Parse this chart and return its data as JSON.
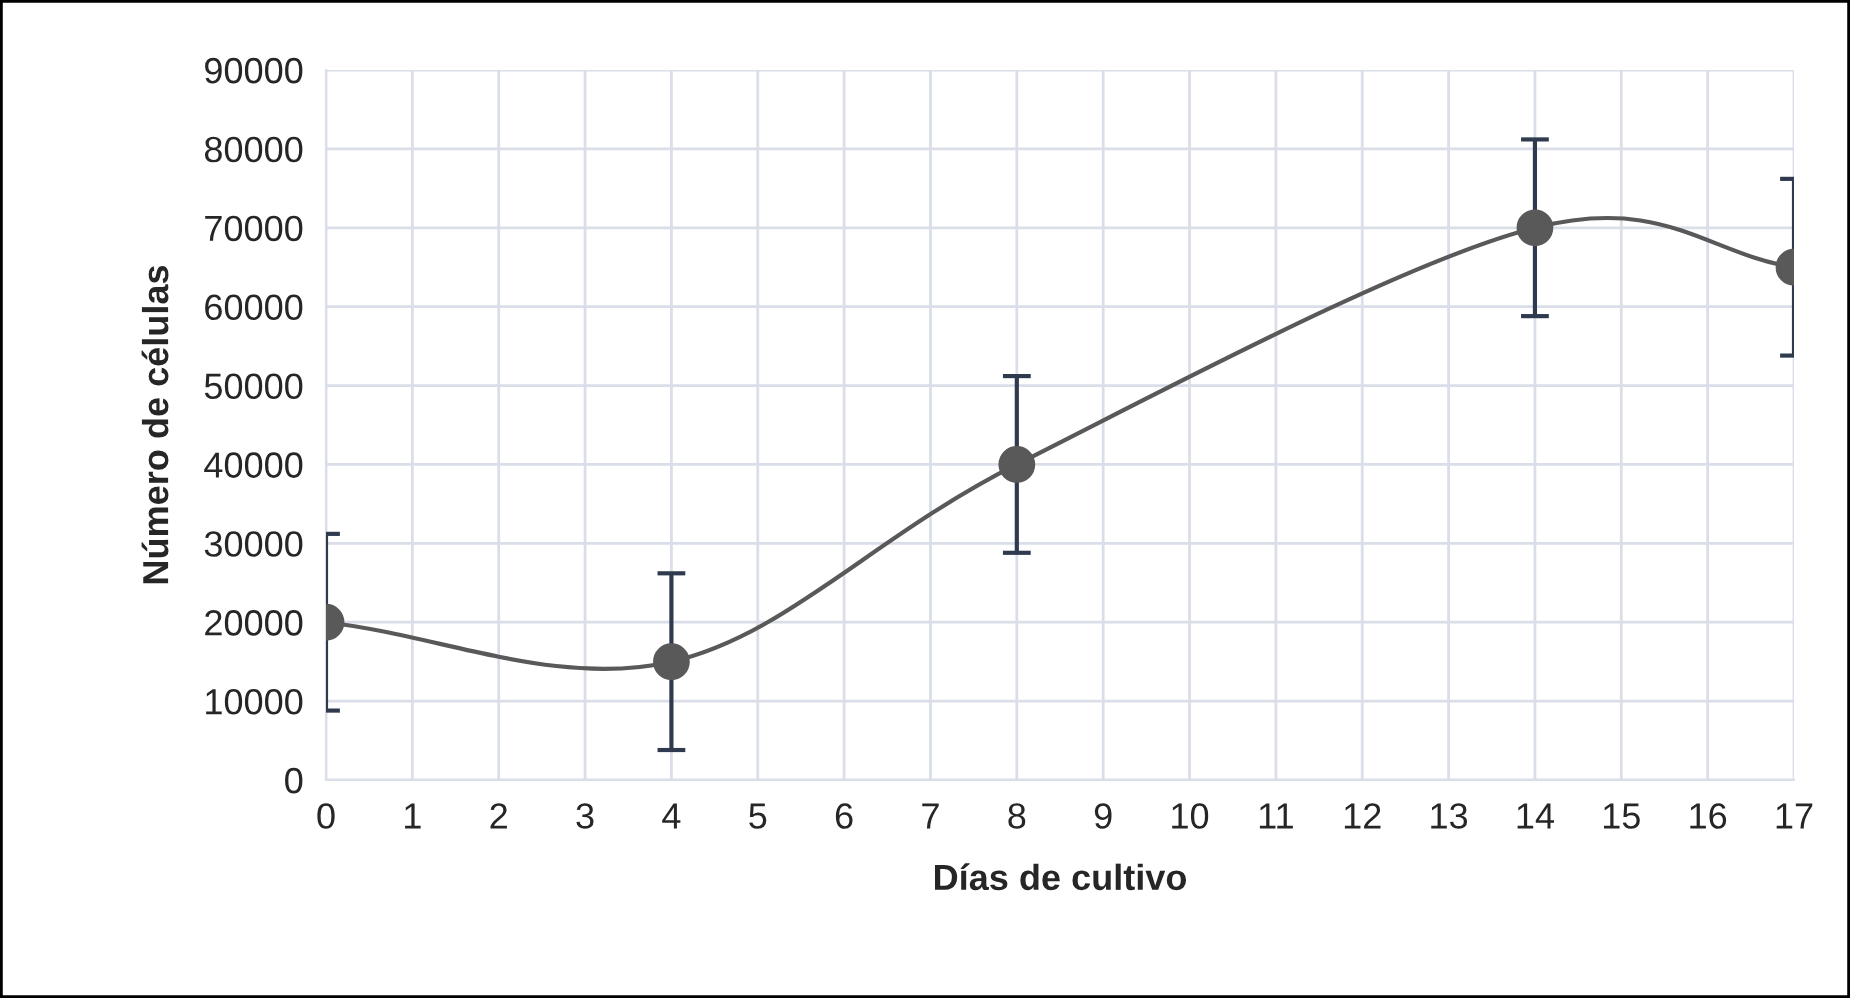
{
  "chart_data": {
    "type": "line",
    "xlabel": "Días de cultivo",
    "ylabel": "Número de células",
    "x": [
      0,
      4,
      8,
      14,
      17
    ],
    "series": [
      {
        "color": "#595959",
        "values": [
          20000,
          15000,
          40000,
          70000,
          65000
        ],
        "errors": [
          11200,
          11200,
          11200,
          11200,
          11200
        ]
      }
    ],
    "xlim": [
      0,
      17
    ],
    "xticks": [
      0,
      1,
      2,
      3,
      4,
      5,
      6,
      7,
      8,
      9,
      10,
      11,
      12,
      13,
      14,
      15,
      16,
      17
    ],
    "ylim": [
      0,
      90000
    ],
    "yticks": [
      0,
      10000,
      20000,
      30000,
      40000,
      50000,
      60000,
      70000,
      80000,
      90000
    ],
    "grid": true,
    "marker": "circle",
    "line_style": "solid",
    "legend": false
  }
}
